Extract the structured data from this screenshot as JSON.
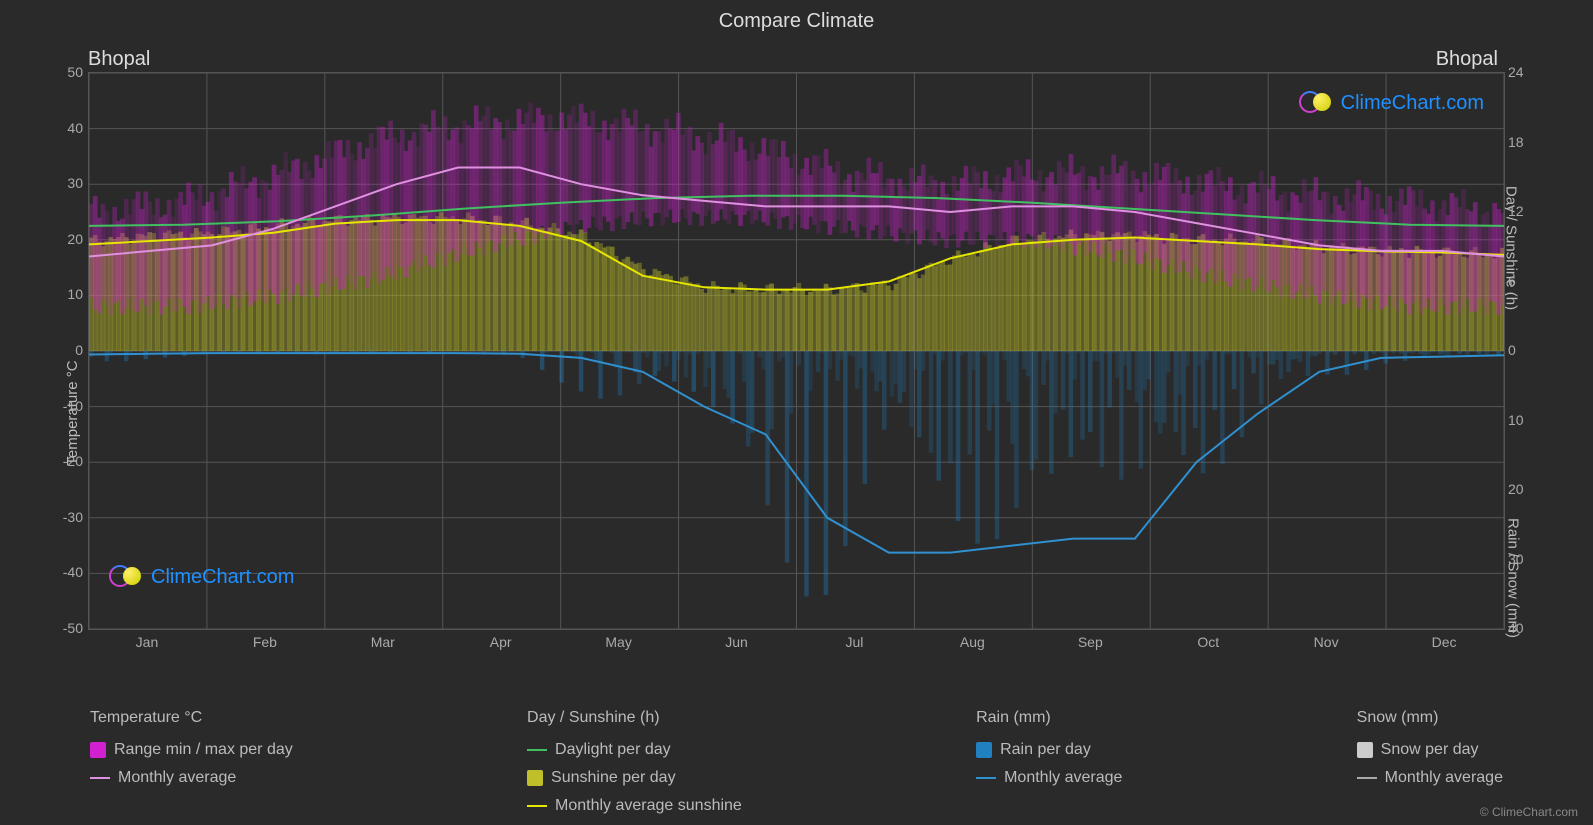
{
  "title": "Compare Climate",
  "city_left": "Bhopal",
  "city_right": "Bhopal",
  "watermark_text": "ClimeChart.com",
  "copyright": "© ClimeChart.com",
  "axes": {
    "left_label": "Temperature °C",
    "right_top_label": "Day / Sunshine (h)",
    "right_bottom_label": "Rain / Snow (mm)",
    "left_ticks": [
      50,
      40,
      30,
      20,
      10,
      0,
      -10,
      -20,
      -30,
      -40,
      -50
    ],
    "right_top_ticks": [
      24,
      18,
      12,
      6,
      0
    ],
    "right_bottom_ticks": [
      0,
      10,
      20,
      30,
      40
    ],
    "months": [
      "Jan",
      "Feb",
      "Mar",
      "Apr",
      "May",
      "Jun",
      "Jul",
      "Aug",
      "Sep",
      "Oct",
      "Nov",
      "Dec"
    ]
  },
  "chart": {
    "yRange": [
      -50,
      50
    ],
    "rightTopRange": [
      0,
      24
    ],
    "rightBottomRange": [
      0,
      40
    ],
    "grid_color": "#555555",
    "background_color": "#2a2a2a",
    "temp_range_color": "#d020d0",
    "temp_range_fill_opacity": 0.55,
    "temp_avg_color": "#e090e0",
    "daylight_color": "#40c060",
    "sunshine_fill_color": "#bfbf2a",
    "sunshine_fill_opacity": 0.65,
    "sunshine_avg_color": "#e6e600",
    "rain_fill_color": "#2080c0",
    "rain_fill_opacity": 0.45,
    "rain_avg_color": "#3090d0",
    "snow_color": "#cccccc",
    "line_width": 2,
    "temp_max": [
      25,
      27,
      32,
      38,
      41,
      42,
      40,
      37,
      32,
      30,
      32,
      32,
      30,
      28,
      27,
      25
    ],
    "temp_min": [
      8,
      8,
      10,
      13,
      18,
      22,
      24,
      24,
      22,
      20,
      20,
      17,
      13,
      10,
      8,
      8
    ],
    "temp_avg": [
      17,
      18,
      19,
      22,
      26,
      30,
      33,
      33,
      30,
      28,
      27,
      26,
      26,
      26,
      25,
      26,
      26,
      25,
      23,
      21,
      19,
      18,
      18,
      17
    ],
    "daylight": [
      10.8,
      10.9,
      11.2,
      11.7,
      12.3,
      12.8,
      13.2,
      13.4,
      13.4,
      13.2,
      12.8,
      12.3,
      11.8,
      11.3,
      10.9,
      10.8
    ],
    "sunshine_top": [
      9.5,
      10,
      10.2,
      10.8,
      11.3,
      11.5,
      11.5,
      11,
      10,
      7,
      5.5,
      5.3,
      5.3,
      5.8,
      8,
      9.5,
      10,
      10,
      9.6,
      9.5,
      9,
      8.7,
      8.5,
      8.3
    ],
    "sunshine_avg": [
      9.2,
      9.5,
      9.8,
      10.2,
      11,
      11.3,
      11.3,
      10.8,
      9.5,
      6.5,
      5.5,
      5.3,
      5.3,
      6,
      8,
      9.2,
      9.6,
      9.8,
      9.5,
      9.2,
      8.8,
      8.6,
      8.5,
      8.3
    ],
    "rain_monthly": [
      0.5,
      0.4,
      0.3,
      0.3,
      0.3,
      0.3,
      0.3,
      0.4,
      1,
      3,
      8,
      12,
      24,
      29,
      29,
      28,
      27,
      27,
      16,
      9,
      3,
      1,
      0.8,
      0.6
    ],
    "rain_daily_peaks": [
      2,
      1,
      1,
      0.5,
      0.5,
      0.5,
      0.5,
      1,
      5,
      12,
      20,
      28,
      38,
      38,
      38,
      38,
      35,
      35,
      28,
      15,
      5,
      2,
      2,
      1.5
    ]
  },
  "legend": {
    "groups": [
      {
        "title": "Temperature °C",
        "items": [
          {
            "type": "swatch",
            "color": "#d020d0",
            "label": "Range min / max per day"
          },
          {
            "type": "line",
            "color": "#e090e0",
            "label": "Monthly average"
          }
        ]
      },
      {
        "title": "Day / Sunshine (h)",
        "items": [
          {
            "type": "line",
            "color": "#40c060",
            "label": "Daylight per day"
          },
          {
            "type": "swatch",
            "color": "#bfbf2a",
            "label": "Sunshine per day"
          },
          {
            "type": "line",
            "color": "#e6e600",
            "label": "Monthly average sunshine"
          }
        ]
      },
      {
        "title": "Rain (mm)",
        "items": [
          {
            "type": "swatch",
            "color": "#2080c0",
            "label": "Rain per day"
          },
          {
            "type": "line",
            "color": "#3090d0",
            "label": "Monthly average"
          }
        ]
      },
      {
        "title": "Snow (mm)",
        "items": [
          {
            "type": "swatch",
            "color": "#cccccc",
            "label": "Snow per day"
          },
          {
            "type": "line",
            "color": "#aaaaaa",
            "label": "Monthly average"
          }
        ]
      }
    ]
  }
}
